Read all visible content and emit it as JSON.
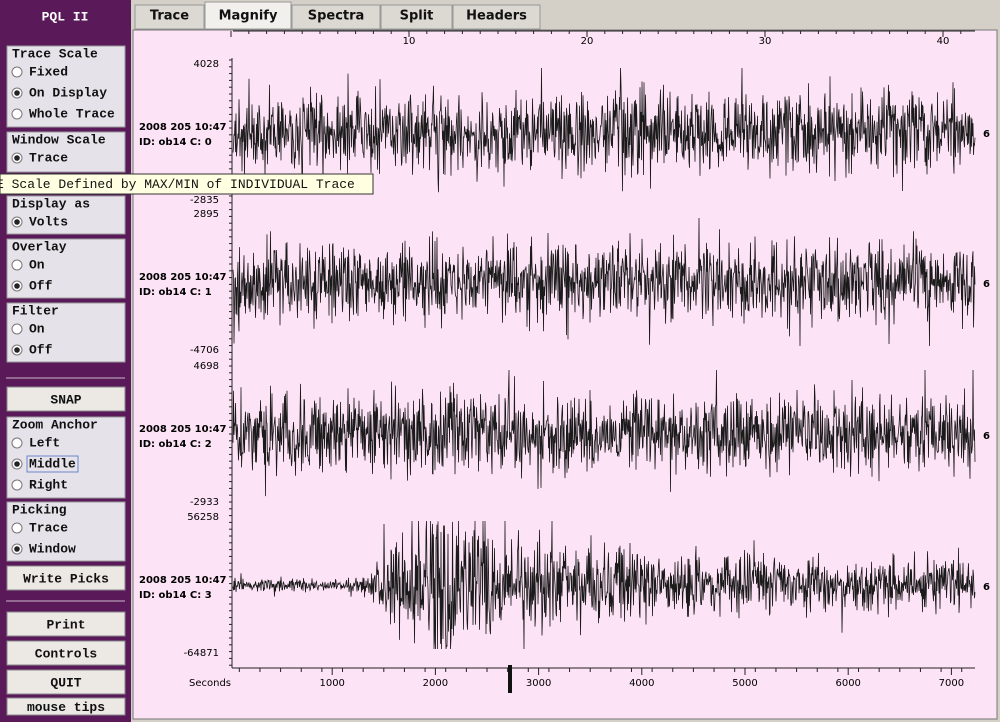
{
  "sidebar": {
    "title": "PQL II",
    "items": [
      {
        "legend": "Trace Scale",
        "options": [
          "Fixed",
          "On Display",
          "Whole Trace"
        ],
        "selected": 1
      },
      {
        "legend": "Window Scale",
        "options": [
          "Trace"
        ],
        "selected": 0
      },
      {
        "legend": "Display as",
        "options": [
          "Volts"
        ],
        "selected": 0
      },
      {
        "legend": "Overlay",
        "options": [
          "On",
          "Off"
        ],
        "selected": 1
      },
      {
        "legend": "Filter",
        "options": [
          "On",
          "Off"
        ],
        "selected": 1
      },
      {
        "button": "SNAP"
      },
      {
        "legend": "Zoom Anchor",
        "options": [
          "Left",
          "Middle",
          "Right"
        ],
        "selected": 1
      },
      {
        "legend": "Picking",
        "options": [
          "Trace",
          "Window"
        ],
        "selected": 1
      },
      {
        "button": "Write Picks"
      },
      {
        "button": "Print"
      },
      {
        "button": "Controls"
      },
      {
        "button": "QUIT"
      },
      {
        "button": "mouse tips"
      }
    ]
  },
  "tooltip": "E Scale Defined by MAX/MIN of INDIVIDUAL Trace",
  "tabs": {
    "items": [
      "Trace",
      "Magnify",
      "Spectra",
      "Split",
      "Headers"
    ],
    "active": 1
  },
  "plot": {
    "top_ticks": [
      10,
      20,
      30,
      40
    ],
    "x_label": "Seconds",
    "x_ticks": [
      1000,
      2000,
      3000,
      4000,
      5000,
      6000,
      7000
    ],
    "traces": [
      {
        "max": 4028,
        "min": -2835,
        "date": "2008 205 10:47",
        "id": "ID: ob14 C: 0",
        "right_label": "6"
      },
      {
        "max": 2895,
        "min": -4706,
        "date": "2008 205 10:47",
        "id": "ID: ob14 C: 1",
        "right_label": "6"
      },
      {
        "max": 4698,
        "min": -2933,
        "date": "2008 205 10:47",
        "id": "ID: ob14 C: 2",
        "right_label": "6"
      },
      {
        "max": 56258,
        "min": -64871,
        "date": "2008 205 10:47",
        "id": "ID: ob14 C: 3",
        "right_label": "6"
      }
    ]
  }
}
